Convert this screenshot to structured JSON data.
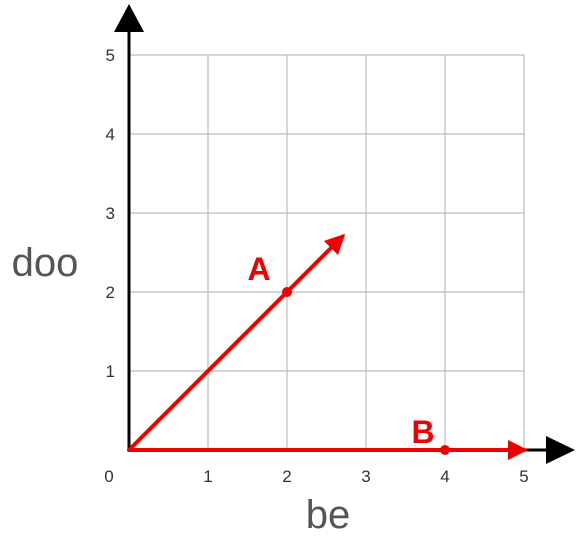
{
  "chart_data": {
    "type": "line",
    "xlabel": "be",
    "ylabel": "doo",
    "xlim": [
      0,
      5
    ],
    "ylim": [
      0,
      5
    ],
    "grid": true,
    "x_ticks": [
      "0",
      "1",
      "2",
      "3",
      "4",
      "5"
    ],
    "y_ticks": [
      "1",
      "2",
      "3",
      "4",
      "5"
    ],
    "axis_color": "#000000",
    "grid_color": "#bdbdbd",
    "series_color": "#ee0000",
    "vectors": [
      {
        "from": [
          0,
          0
        ],
        "to": [
          2.7,
          2.7
        ]
      },
      {
        "from": [
          0,
          0
        ],
        "to": [
          5,
          0
        ]
      }
    ],
    "points": [
      {
        "label": "A",
        "x": 2,
        "y": 2
      },
      {
        "label": "B",
        "x": 4,
        "y": 0
      }
    ]
  }
}
